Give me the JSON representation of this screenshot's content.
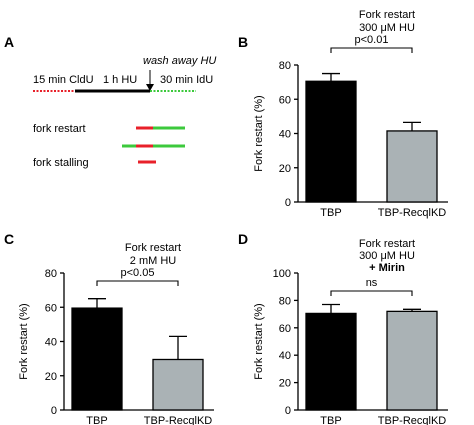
{
  "panels": {
    "A": {
      "label": "A",
      "schematic": {
        "step1": "15 min CldU",
        "step2": "1 h HU",
        "step3": "wash away HU",
        "step4": "30 min IdU",
        "legend": [
          "fork restart",
          "fork stalling"
        ],
        "colors": {
          "cldu": "#e8202a",
          "hu": "#000000",
          "idu": "#3cc93c"
        }
      }
    }
  },
  "chart_data": [
    {
      "panel": "B",
      "type": "bar",
      "title": [
        "Fork restart",
        "300 μM HU"
      ],
      "title_bold": "",
      "ylabel": "Fork restart (%)",
      "ylim": [
        0,
        80
      ],
      "yticks": [
        0,
        20,
        40,
        60,
        80
      ],
      "categories": [
        "TBP",
        "TBP-RecqlKD"
      ],
      "values": [
        70.5,
        41.5
      ],
      "errors": [
        4.5,
        5
      ],
      "colors": [
        "#000000",
        "#aab2b5"
      ],
      "significance": "p<0.01"
    },
    {
      "panel": "C",
      "type": "bar",
      "title": [
        "Fork restart",
        "2 mM HU"
      ],
      "title_bold": "",
      "ylabel": "Fork restart (%)",
      "ylim": [
        0,
        80
      ],
      "yticks": [
        0,
        20,
        40,
        60,
        80
      ],
      "categories": [
        "TBP",
        "TBP-RecqlKD"
      ],
      "values": [
        59.5,
        29.5
      ],
      "errors": [
        5.5,
        13.5
      ],
      "colors": [
        "#000000",
        "#aab2b5"
      ],
      "significance": "p<0.05"
    },
    {
      "panel": "D",
      "type": "bar",
      "title": [
        "Fork restart",
        "300 μM HU"
      ],
      "title_bold": "+ Mirin",
      "ylabel": "Fork restart (%)",
      "ylim": [
        0,
        100
      ],
      "yticks": [
        0,
        20,
        40,
        60,
        80,
        100
      ],
      "categories": [
        "TBP",
        "TBP-RecqlKD"
      ],
      "values": [
        70.5,
        72
      ],
      "errors": [
        6.5,
        1.5
      ],
      "colors": [
        "#000000",
        "#aab2b5"
      ],
      "significance": "ns"
    }
  ]
}
